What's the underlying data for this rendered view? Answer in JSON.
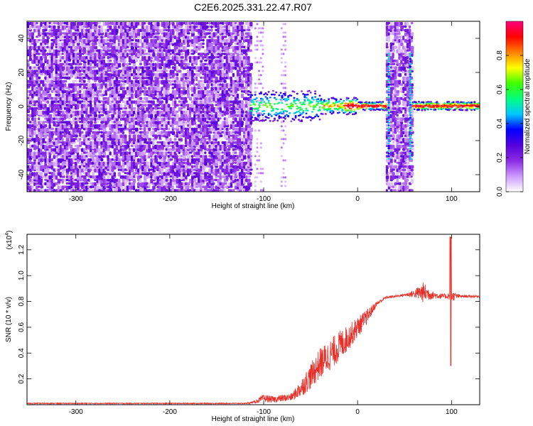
{
  "chart_data": [
    {
      "type": "heatmap",
      "title": "C2E6.2025.331.22.47.R07",
      "xlabel": "Height of straight line (km)",
      "ylabel": "Frequency (Hz)",
      "xlim": [
        -352,
        130
      ],
      "ylim": [
        -50,
        50
      ],
      "xticks": [
        -300,
        -200,
        -100,
        0,
        100
      ],
      "yticks": [
        -40,
        -20,
        0,
        20,
        40
      ],
      "colorbar": {
        "label": "Normalized spectral amplitude",
        "range": [
          0.0,
          1.0
        ],
        "ticks": [
          0.0,
          0.2,
          0.4,
          0.6,
          0.8
        ],
        "tick_labels": [
          "0.0",
          "0.2",
          "0.4",
          "0.6",
          "0.8"
        ],
        "colormap": [
          "#ffffff",
          "#cc99ff",
          "#8a2be2",
          "#5500dd",
          "#0000ff",
          "#00c8ff",
          "#00ff80",
          "#40ff00",
          "#ffff00",
          "#ff8000",
          "#ff0000",
          "#ff0080"
        ]
      },
      "description": {
        "noise_region_km": [
          -352,
          -115
        ],
        "signal_onset_km": -115,
        "center_frequency_hz": 0,
        "gap_bands_km": [
          [
            30,
            57
          ]
        ],
        "strong_line_km": [
          -15,
          130
        ]
      }
    },
    {
      "type": "line",
      "xlabel": "Height of straight line (km)",
      "ylabel": "SNR (10 * v/v)",
      "y_multiplier_label": "(x10",
      "y_multiplier_exp": "4",
      "xlim": [
        -352,
        130
      ],
      "ylim": [
        0,
        1.32
      ],
      "xticks": [
        -300,
        -200,
        -100,
        0,
        100
      ],
      "yticks": [
        0.2,
        0.4,
        0.6,
        0.8,
        1.0,
        1.2
      ],
      "ytick_labels": [
        "0.2",
        "0.4",
        "0.6",
        "0.8",
        "1.0",
        "1.2"
      ],
      "series": [
        {
          "name": "SNR",
          "color": "#e8302a",
          "x": [
            -352,
            -300,
            -200,
            -120,
            -110,
            -100,
            -90,
            -70,
            -60,
            -50,
            -40,
            -30,
            -20,
            -10,
            0,
            10,
            20,
            30,
            40,
            50,
            60,
            70,
            80,
            90,
            95,
            100,
            110,
            120,
            130
          ],
          "y": [
            0.01,
            0.01,
            0.01,
            0.01,
            0.02,
            0.05,
            0.04,
            0.06,
            0.13,
            0.22,
            0.32,
            0.38,
            0.45,
            0.52,
            0.6,
            0.68,
            0.78,
            0.83,
            0.84,
            0.85,
            0.86,
            0.87,
            0.85,
            0.84,
            0.84,
            0.84,
            0.84,
            0.84,
            0.84
          ],
          "noise": [
            0.004,
            0.004,
            0.004,
            0.004,
            0.01,
            0.03,
            0.025,
            0.03,
            0.07,
            0.1,
            0.12,
            0.12,
            0.12,
            0.1,
            0.08,
            0.06,
            0.02,
            0.01,
            0.01,
            0.01,
            0.03,
            0.08,
            0.03,
            0.02,
            0.02,
            0.04,
            0.01,
            0.01,
            0.01
          ]
        }
      ]
    }
  ]
}
